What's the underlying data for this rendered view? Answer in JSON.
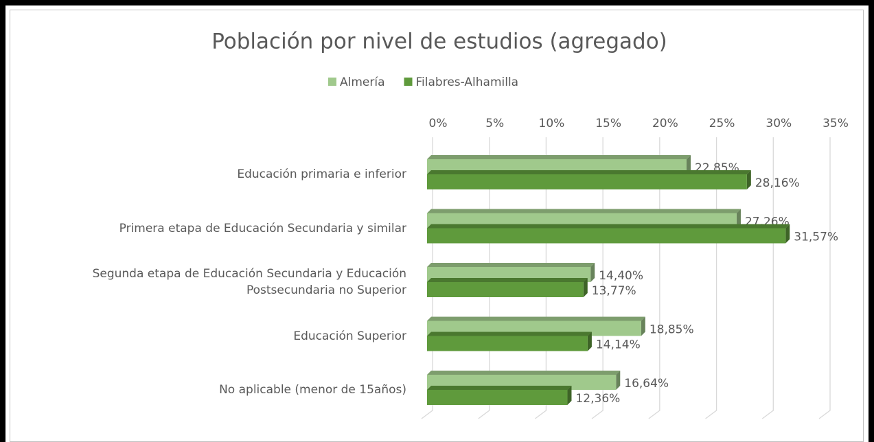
{
  "chart_data": {
    "type": "bar",
    "orientation": "horizontal",
    "title": "Población por nivel de estudios (agregado)",
    "categories": [
      "Educación primaria e inferior",
      "Primera etapa de Educación Secundaria y similar",
      "Segunda etapa de Educación Secundaria y Educación Postsecundaria no Superior",
      "Educación Superior",
      "No aplicable (menor de 15años)"
    ],
    "series": [
      {
        "name": "Almería",
        "color": "#a0c98c",
        "values": [
          22.85,
          27.26,
          14.4,
          18.85,
          16.64
        ],
        "value_labels": [
          "22,85%",
          "27,26%",
          "14,40%",
          "18,85%",
          "16,64%"
        ]
      },
      {
        "name": "Filabres-Alhamilla",
        "color": "#5f9a3c",
        "values": [
          28.16,
          31.57,
          13.77,
          14.14,
          12.36
        ],
        "value_labels": [
          "28,16%",
          "31,57%",
          "13,77%",
          "14,14%",
          "12,36%"
        ]
      }
    ],
    "xlim": [
      0,
      35
    ],
    "xticks": [
      {
        "value": 0,
        "label": "0%"
      },
      {
        "value": 5,
        "label": "5%"
      },
      {
        "value": 10,
        "label": "10%"
      },
      {
        "value": 15,
        "label": "15%"
      },
      {
        "value": 20,
        "label": "20%"
      },
      {
        "value": 25,
        "label": "25%"
      },
      {
        "value": 30,
        "label": "30%"
      },
      {
        "value": 35,
        "label": "35%"
      }
    ],
    "grid": true,
    "legend": "top"
  }
}
